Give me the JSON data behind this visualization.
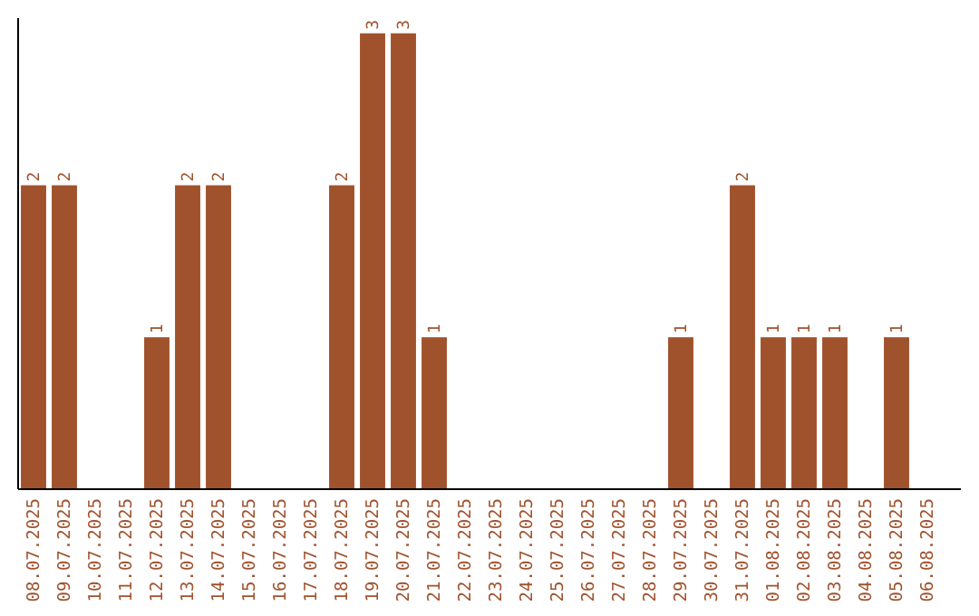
{
  "chart_data": {
    "type": "bar",
    "categories": [
      "08.07.2025",
      "09.07.2025",
      "10.07.2025",
      "11.07.2025",
      "12.07.2025",
      "13.07.2025",
      "14.07.2025",
      "15.07.2025",
      "16.07.2025",
      "17.07.2025",
      "18.07.2025",
      "19.07.2025",
      "20.07.2025",
      "21.07.2025",
      "22.07.2025",
      "23.07.2025",
      "24.07.2025",
      "25.07.2025",
      "26.07.2025",
      "27.07.2025",
      "28.07.2025",
      "29.07.2025",
      "30.07.2025",
      "31.07.2025",
      "01.08.2025",
      "02.08.2025",
      "03.08.2025",
      "04.08.2025",
      "05.08.2025",
      "06.08.2025"
    ],
    "values": [
      2,
      2,
      0,
      0,
      1,
      2,
      2,
      0,
      0,
      0,
      2,
      3,
      3,
      1,
      0,
      0,
      0,
      0,
      0,
      0,
      0,
      1,
      0,
      2,
      1,
      1,
      1,
      0,
      1,
      0
    ],
    "value_labels": [
      "2",
      "2",
      null,
      null,
      "1",
      "2",
      "2",
      null,
      null,
      null,
      "2",
      "3",
      "3",
      "1",
      null,
      null,
      null,
      null,
      null,
      null,
      null,
      "1",
      null,
      "2",
      "1",
      "1",
      "1",
      null,
      "1",
      null
    ],
    "color": "#a0522d",
    "ylim": [
      0,
      3.1
    ],
    "tick_labels": "x"
  }
}
